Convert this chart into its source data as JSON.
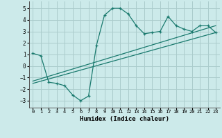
{
  "xlabel": "Humidex (Indice chaleur)",
  "bg_color": "#cceaea",
  "grid_color": "#aacccc",
  "line_color": "#1a7a6e",
  "xlim": [
    -0.5,
    23.5
  ],
  "ylim": [
    -3.6,
    5.6
  ],
  "xticks": [
    0,
    1,
    2,
    3,
    4,
    5,
    6,
    7,
    8,
    9,
    10,
    11,
    12,
    13,
    14,
    15,
    16,
    17,
    18,
    19,
    20,
    21,
    22,
    23
  ],
  "yticks": [
    -3,
    -2,
    -1,
    0,
    1,
    2,
    3,
    4,
    5
  ],
  "curve1_x": [
    0,
    1,
    2,
    3,
    4,
    5,
    6,
    7,
    8,
    9,
    10,
    11,
    12,
    13,
    14,
    15,
    16,
    17,
    18,
    19,
    20,
    21,
    22,
    23
  ],
  "curve1_y": [
    1.1,
    0.9,
    -1.4,
    -1.5,
    -1.7,
    -2.5,
    -3.0,
    -2.6,
    1.8,
    4.4,
    5.0,
    5.0,
    4.5,
    3.5,
    2.8,
    2.9,
    3.0,
    4.3,
    3.5,
    3.2,
    3.0,
    3.5,
    3.5,
    2.9
  ],
  "line1_x": [
    0,
    23
  ],
  "line1_y": [
    -1.3,
    3.5
  ],
  "line2_x": [
    0,
    23
  ],
  "line2_y": [
    -1.5,
    2.9
  ]
}
